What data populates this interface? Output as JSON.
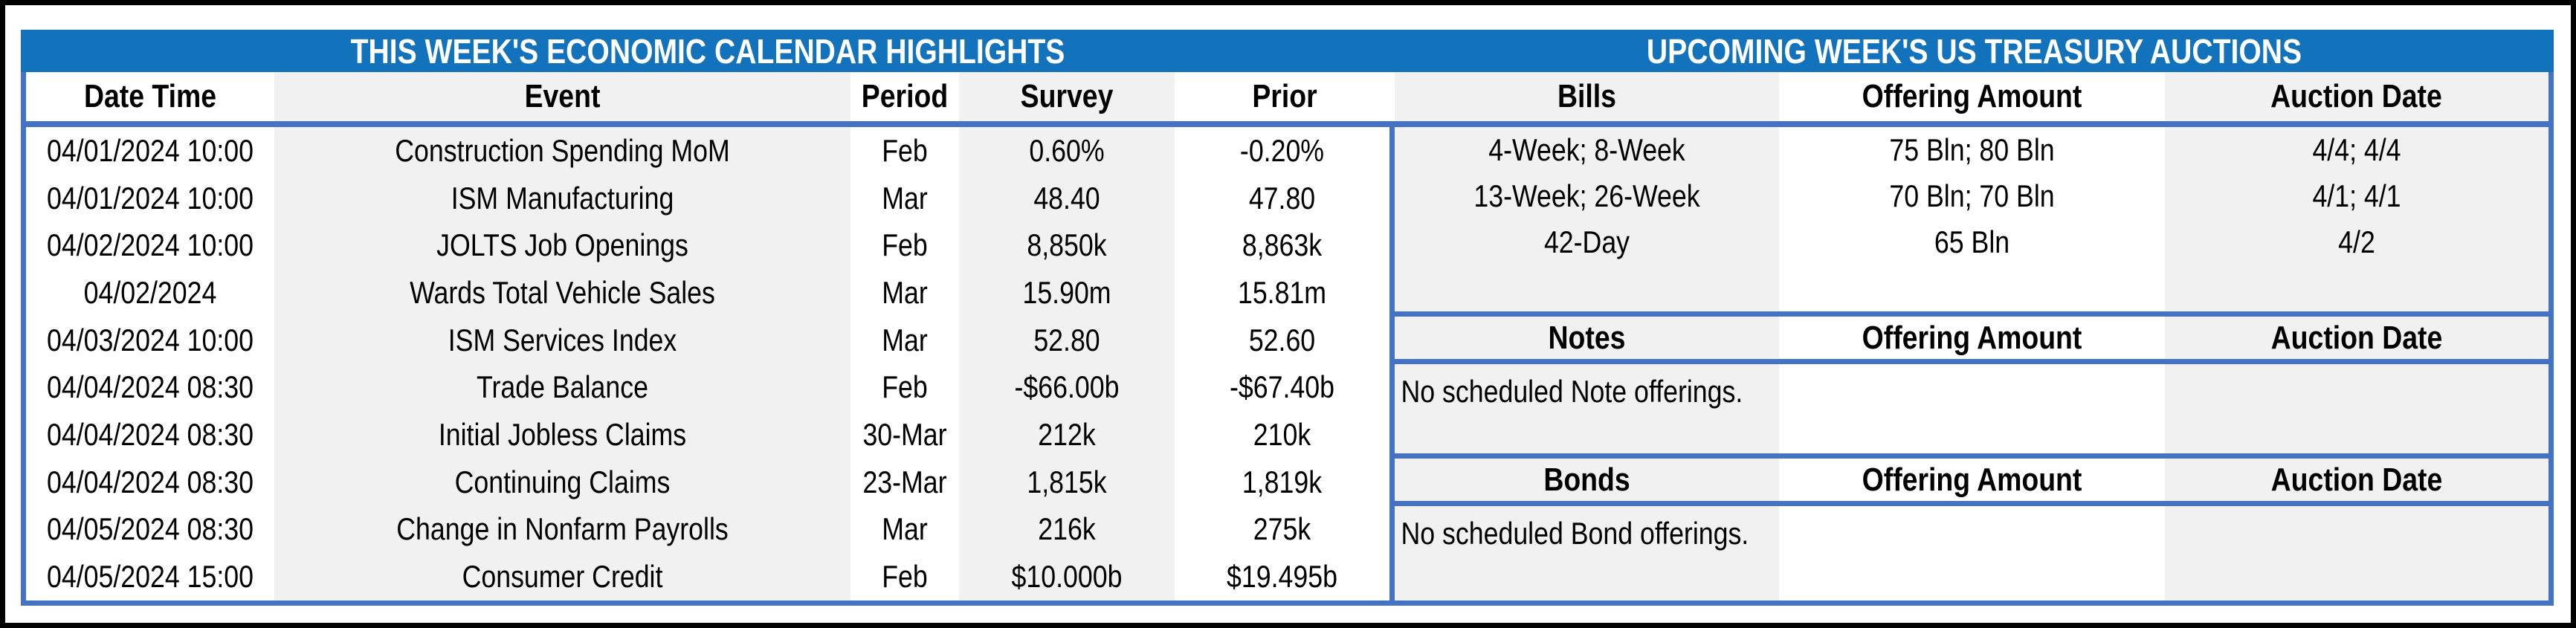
{
  "titles": {
    "left": "THIS WEEK'S ECONOMIC CALENDAR HIGHLIGHTS",
    "right": "UPCOMING WEEK'S US TREASURY AUCTIONS"
  },
  "calendar": {
    "columns": [
      "Date Time",
      "Event",
      "Period",
      "Survey",
      "Prior"
    ],
    "rows": [
      {
        "datetime": "04/01/2024 10:00",
        "event": "Construction Spending MoM",
        "period": "Feb",
        "survey": "0.60%",
        "prior": "-0.20%"
      },
      {
        "datetime": "04/01/2024 10:00",
        "event": "ISM Manufacturing",
        "period": "Mar",
        "survey": "48.40",
        "prior": "47.80"
      },
      {
        "datetime": "04/02/2024 10:00",
        "event": "JOLTS Job Openings",
        "period": "Feb",
        "survey": "8,850k",
        "prior": "8,863k"
      },
      {
        "datetime": "04/02/2024",
        "event": "Wards Total Vehicle Sales",
        "period": "Mar",
        "survey": "15.90m",
        "prior": "15.81m"
      },
      {
        "datetime": "04/03/2024 10:00",
        "event": "ISM Services Index",
        "period": "Mar",
        "survey": "52.80",
        "prior": "52.60"
      },
      {
        "datetime": "04/04/2024 08:30",
        "event": "Trade Balance",
        "period": "Feb",
        "survey": "-$66.00b",
        "prior": "-$67.40b"
      },
      {
        "datetime": "04/04/2024 08:30",
        "event": "Initial Jobless Claims",
        "period": "30-Mar",
        "survey": "212k",
        "prior": "210k"
      },
      {
        "datetime": "04/04/2024 08:30",
        "event": "Continuing Claims",
        "period": "23-Mar",
        "survey": "1,815k",
        "prior": "1,819k"
      },
      {
        "datetime": "04/05/2024 08:30",
        "event": "Change in Nonfarm Payrolls",
        "period": "Mar",
        "survey": "216k",
        "prior": "275k"
      },
      {
        "datetime": "04/05/2024 15:00",
        "event": "Consumer Credit",
        "period": "Feb",
        "survey": "$10.000b",
        "prior": "$19.495b"
      }
    ]
  },
  "auctions": {
    "bills": {
      "columns": [
        "Bills",
        "Offering Amount",
        "Auction Date"
      ],
      "rows": [
        {
          "security": "4-Week; 8-Week",
          "amount": "75 Bln; 80 Bln",
          "date": "4/4; 4/4"
        },
        {
          "security": "13-Week; 26-Week",
          "amount": "70 Bln; 70 Bln",
          "date": "4/1; 4/1"
        },
        {
          "security": "42-Day",
          "amount": "65 Bln",
          "date": "4/2"
        }
      ]
    },
    "notes": {
      "columns": [
        "Notes",
        "Offering Amount",
        "Auction Date"
      ],
      "message": "No scheduled Note offerings."
    },
    "bonds": {
      "columns": [
        "Bonds",
        "Offering Amount",
        "Auction Date"
      ],
      "message": "No scheduled Bond offerings."
    }
  },
  "colors": {
    "title_bar_blue": "#1272BC",
    "border_blue": "#4472C4",
    "band_gray": "#F1F1F1",
    "text": "#000000",
    "background": "#FFFFFF"
  }
}
